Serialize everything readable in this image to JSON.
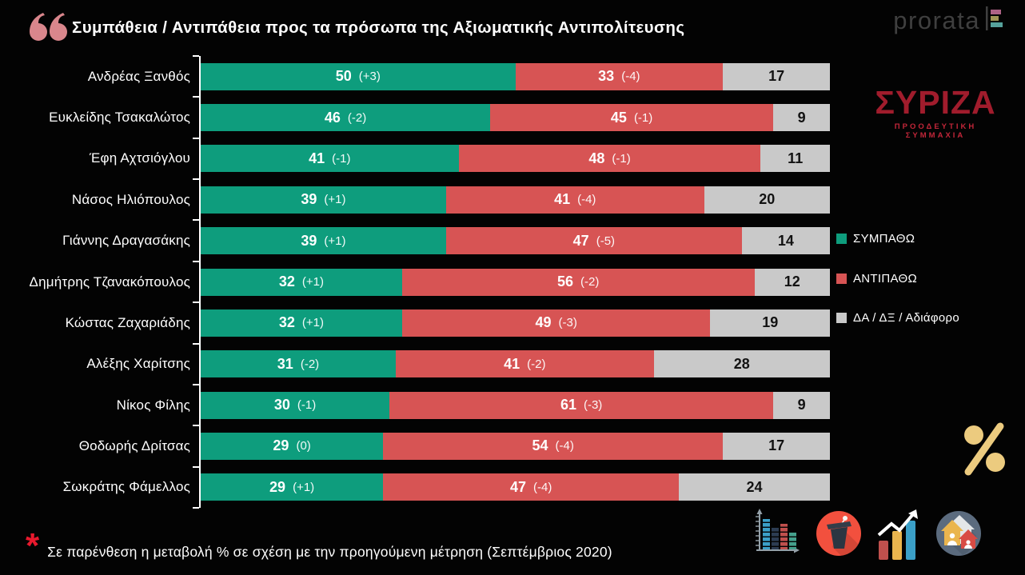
{
  "header": {
    "title": "Συμπάθεια / Αντιπάθεια προς τα πρόσωπα της Αξιωματικής Αντιπολίτευσης",
    "prorata_logo_text": "prorata"
  },
  "chart_data": {
    "type": "bar",
    "orientation": "horizontal-stacked",
    "title": "Συμπάθεια / Αντιπάθεια προς τα πρόσωπα της Αξιωματικής Αντιπολίτευσης",
    "xlim": [
      0,
      100
    ],
    "grid": false,
    "legend_position": "right",
    "categories": [
      "Ανδρέας Ξανθός",
      "Ευκλείδης Τσακαλώτος",
      "Έφη Αχτσιόγλου",
      "Νάσος Ηλιόπουλος",
      "Γιάννης Δραγασάκης",
      "Δημήτρης Τζανακόπουλος",
      "Κώστας Ζαχαριάδης",
      "Αλέξης Χαρίτσης",
      "Νίκος Φίλης",
      "Θοδωρής Δρίτσας",
      "Σωκράτης Φάμελλος"
    ],
    "series": [
      {
        "name": "ΣΥΜΠΑΘΩ",
        "color": "#0e9d7d",
        "values": [
          50,
          46,
          41,
          39,
          39,
          32,
          32,
          31,
          30,
          29,
          29
        ],
        "changes": [
          "(+3)",
          "(-2)",
          "(-1)",
          "(+1)",
          "(+1)",
          "(+1)",
          "(+1)",
          "(-2)",
          "(-1)",
          "(0)",
          "(+1)"
        ]
      },
      {
        "name": "ΑΝΤΙΠΑΘΩ",
        "color": "#d75454",
        "values": [
          33,
          45,
          48,
          41,
          47,
          56,
          49,
          41,
          61,
          54,
          47
        ],
        "changes": [
          "(-4)",
          "(-1)",
          "(-1)",
          "(-4)",
          "(-5)",
          "(-2)",
          "(-3)",
          "(-2)",
          "(-3)",
          "(-4)",
          "(-4)"
        ]
      },
      {
        "name": "ΔΑ / ΔΞ / Αδιάφορο",
        "color": "#c9c9c9",
        "values": [
          17,
          9,
          11,
          20,
          14,
          12,
          19,
          28,
          9,
          17,
          24
        ],
        "changes": [
          "",
          "",
          "",
          "",
          "",
          "",
          "",
          "",
          "",
          "",
          ""
        ]
      }
    ]
  },
  "legend": {
    "items": [
      {
        "label": "ΣΥΜΠΑΘΩ",
        "color": "#0e9d7d"
      },
      {
        "label": "ΑΝΤΙΠΑΘΩ",
        "color": "#d75454"
      },
      {
        "label": "ΔΑ / ΔΞ / Αδιάφορο",
        "color": "#c9c9c9"
      }
    ]
  },
  "branding": {
    "syriza_name": "ΣΥΡΙΖΑ",
    "syriza_subtitle": "ΠΡΟΟΔΕΥΤΙΚΗ ΣΥΜΜΑΧΙΑ"
  },
  "footnote": {
    "asterisk": "*",
    "text": "Σε παρένθεση η μεταβολή % σε σχέση με την προηγούμενη μέτρηση (Σεπτέμβριος 2020)"
  },
  "icons": {
    "names": [
      "quote-icon",
      "prorata-mark-icon",
      "percent-icon",
      "stats-bar-chart-icon",
      "podium-icon",
      "growth-chart-icon",
      "housing-icon"
    ],
    "palette": {
      "quote_salmon": "#d9868c",
      "asterisk_red": "#e8192d",
      "gold": "#eccb7f",
      "icon_circle_red": "#f2503e",
      "icon_circle_slate": "#5b6b7e",
      "icon_blue": "#3ba0c8",
      "icon_gold": "#eab54e",
      "icon_red": "#c0504d",
      "icon_teal": "#44a08c"
    }
  }
}
